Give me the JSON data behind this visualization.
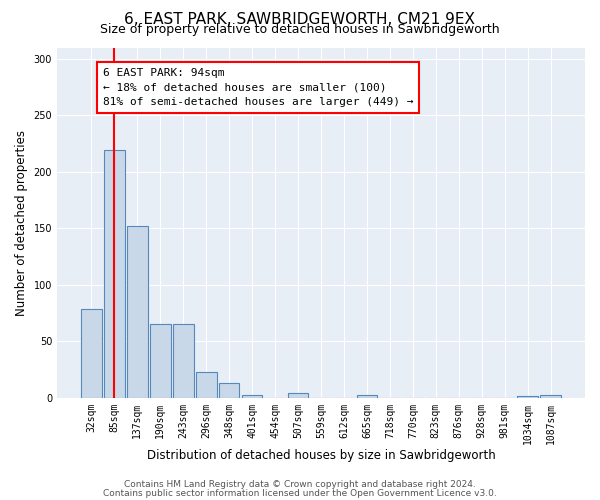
{
  "title1": "6, EAST PARK, SAWBRIDGEWORTH, CM21 9EX",
  "title2": "Size of property relative to detached houses in Sawbridgeworth",
  "xlabel": "Distribution of detached houses by size in Sawbridgeworth",
  "ylabel": "Number of detached properties",
  "bar_values": [
    79,
    219,
    152,
    65,
    65,
    23,
    13,
    3,
    0,
    4,
    0,
    0,
    3,
    0,
    0,
    0,
    0,
    0,
    0,
    2,
    3
  ],
  "categories": [
    "32sqm",
    "85sqm",
    "137sqm",
    "190sqm",
    "243sqm",
    "296sqm",
    "348sqm",
    "401sqm",
    "454sqm",
    "507sqm",
    "559sqm",
    "612sqm",
    "665sqm",
    "718sqm",
    "770sqm",
    "823sqm",
    "876sqm",
    "928sqm",
    "981sqm",
    "1034sqm",
    "1087sqm"
  ],
  "bar_color": "#c8d8e8",
  "bar_edge_color": "#5588bb",
  "annotation_line1": "6 EAST PARK: 94sqm",
  "annotation_line2": "← 18% of detached houses are smaller (100)",
  "annotation_line3": "81% of semi-detached houses are larger (449) →",
  "annotation_box_color": "white",
  "annotation_box_edge_color": "red",
  "vline_x": 1,
  "vline_color": "red",
  "ylim": [
    0,
    310
  ],
  "yticks": [
    0,
    50,
    100,
    150,
    200,
    250,
    300
  ],
  "footer1": "Contains HM Land Registry data © Crown copyright and database right 2024.",
  "footer2": "Contains public sector information licensed under the Open Government Licence v3.0.",
  "bg_color": "#e8eef6",
  "grid_color": "white",
  "title1_fontsize": 11,
  "title2_fontsize": 9,
  "xlabel_fontsize": 8.5,
  "ylabel_fontsize": 8.5,
  "tick_fontsize": 7,
  "footer_fontsize": 6.5,
  "annot_fontsize": 8
}
